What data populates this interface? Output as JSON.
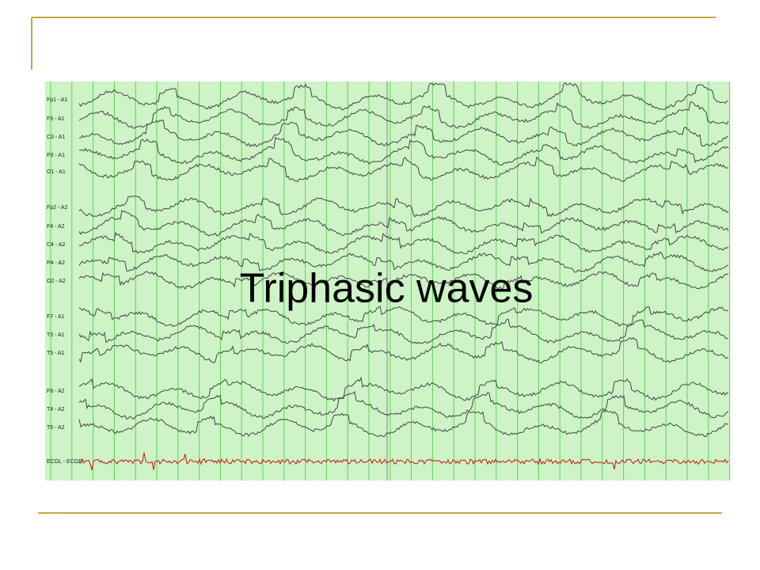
{
  "title": "Triphasic waves",
  "eeg": {
    "channels": [
      "Fp1 - A1",
      "F3 - A1",
      "C3 - A1",
      "P3 - A1",
      "O1 - A1",
      "Fp2 - A2",
      "F4 - A2",
      "C4 - A2",
      "P4 - A2",
      "O2 - A2",
      "F7 - A1",
      "T3 - A1",
      "T5 - A1",
      "F8 - A2",
      "T4 - A2",
      "T6 - A2",
      "ECGL - ECGR"
    ]
  }
}
